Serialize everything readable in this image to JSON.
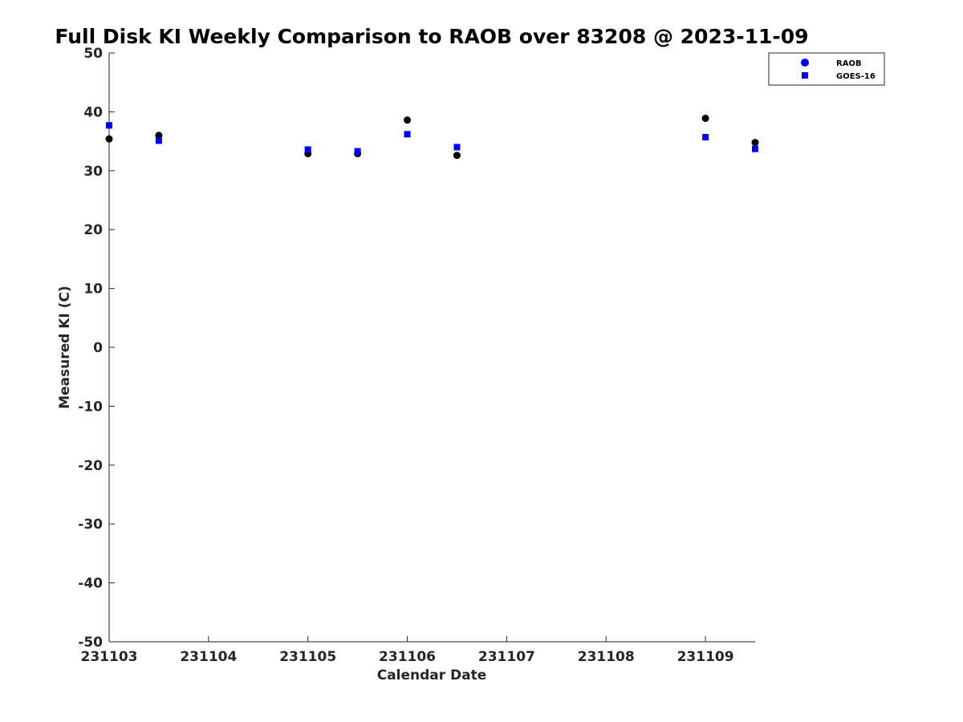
{
  "chart_data": {
    "type": "scatter",
    "title": "Full Disk KI Weekly Comparison to RAOB over 83208 @ 2023-11-09",
    "xlabel": "Calendar Date",
    "ylabel": "Measured KI (C)",
    "x_tick_values": [
      0,
      1,
      2,
      3,
      4,
      5,
      6
    ],
    "x_tick_labels": [
      "231103",
      "231104",
      "231105",
      "231106",
      "231107",
      "231108",
      "231109"
    ],
    "xlim": [
      0,
      6.5
    ],
    "ylim": [
      -50,
      50
    ],
    "y_ticks": [
      -50,
      -40,
      -30,
      -20,
      -10,
      0,
      10,
      20,
      30,
      40,
      50
    ],
    "grid": false,
    "legend_position": "top-right",
    "series": [
      {
        "name": "RAOB",
        "marker": "circle",
        "color": "#000000",
        "legend_color": "#0000ee",
        "x": [
          0,
          0.5,
          2,
          2.5,
          3,
          3.5,
          6,
          6.5
        ],
        "y": [
          35.4,
          36.0,
          32.9,
          32.9,
          38.6,
          32.6,
          38.9,
          34.8
        ]
      },
      {
        "name": "GOES-16",
        "marker": "square",
        "color": "#0000ee",
        "legend_color": "#0000ee",
        "x": [
          0,
          0.5,
          2,
          2.5,
          3,
          3.5,
          6,
          6.5
        ],
        "y": [
          37.7,
          35.1,
          33.6,
          33.3,
          36.2,
          34.0,
          35.7,
          33.7
        ]
      }
    ]
  }
}
